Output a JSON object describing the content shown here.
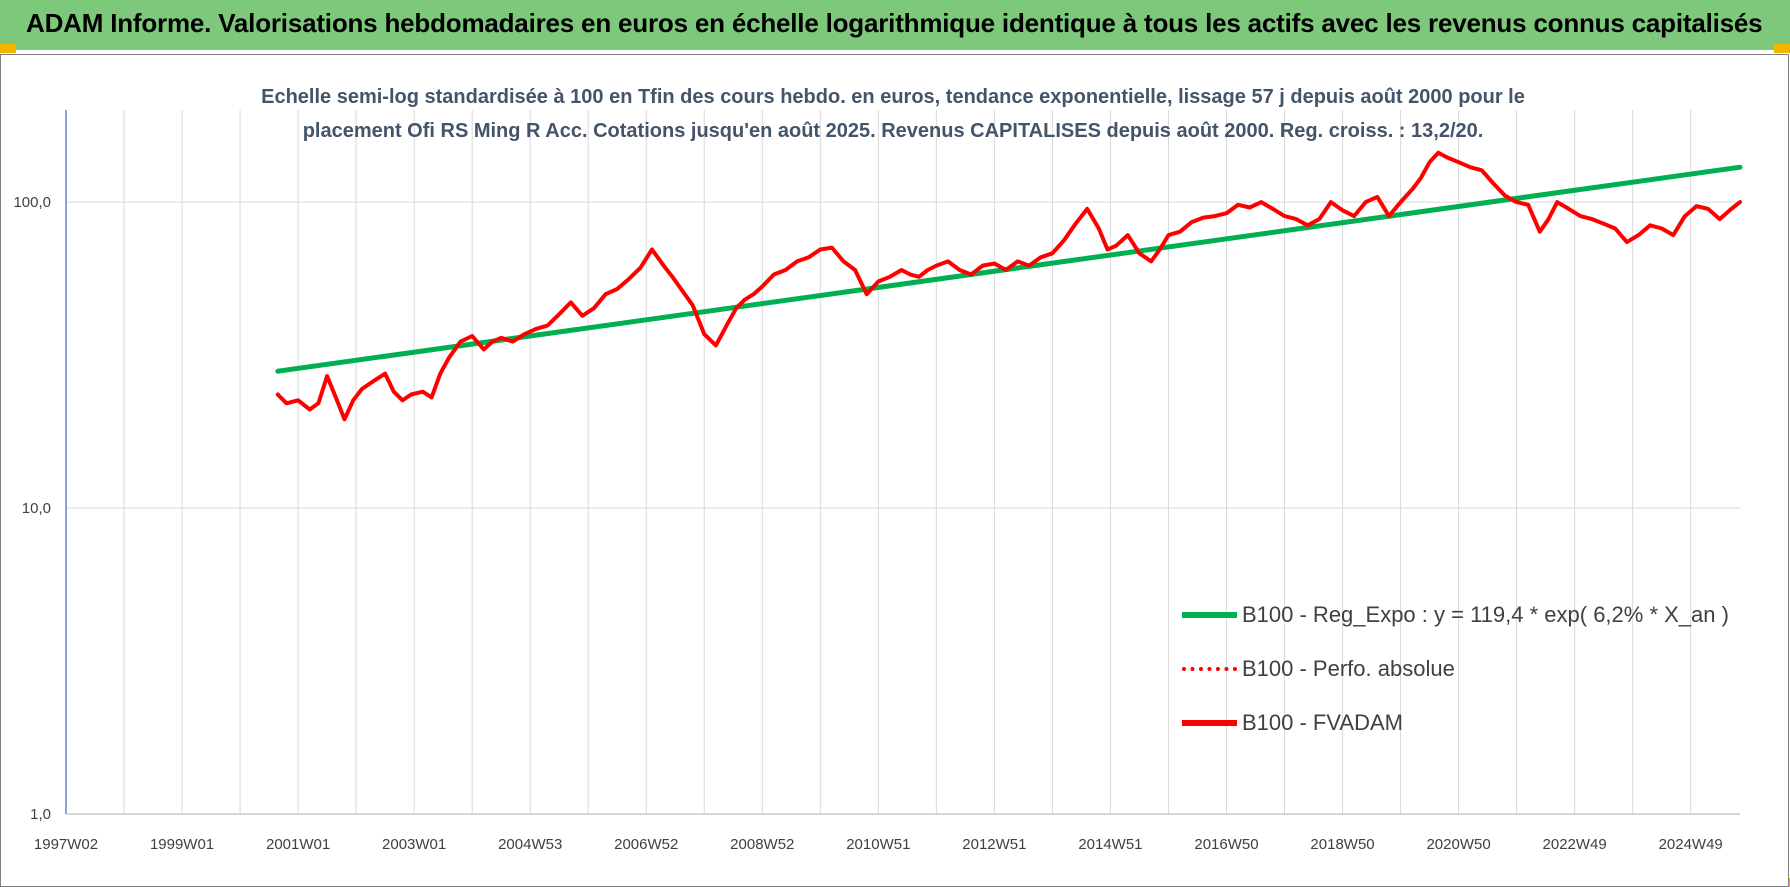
{
  "banner": {
    "title": "ADAM Informe. Valorisations hebdomadaires en euros en échelle logarithmique identique à tous les actifs avec les revenus connus capitalisés",
    "color": "#7dc87a"
  },
  "chart_data": {
    "type": "line",
    "title_lines": [
      "Echelle semi-log standardisée à 100 en Tfin des cours hebdo. en euros, tendance exponentielle, lissage 57 j depuis août 2000 pour le",
      "placement Ofi RS Ming R Acc. Cotations jusqu'en août 2025. Revenus CAPITALISES depuis août 2000. Reg. croiss. : 13,2/20."
    ],
    "y_scale": "log",
    "ylim": [
      1,
      200
    ],
    "y_ticks": [
      {
        "value": 1,
        "label": "1,0"
      },
      {
        "value": 10,
        "label": "10,0"
      },
      {
        "value": 100,
        "label": "100,0"
      }
    ],
    "xlim": [
      1997.0,
      2025.85
    ],
    "x_ticks": [
      {
        "value": 1997.0,
        "label": "1997W02"
      },
      {
        "value": 1999.0,
        "label": "1999W01"
      },
      {
        "value": 2001.0,
        "label": "2001W01"
      },
      {
        "value": 2003.0,
        "label": "2003W01"
      },
      {
        "value": 2005.0,
        "label": "2004W53"
      },
      {
        "value": 2007.0,
        "label": "2006W52"
      },
      {
        "value": 2009.0,
        "label": "2008W52"
      },
      {
        "value": 2011.0,
        "label": "2010W51"
      },
      {
        "value": 2013.0,
        "label": "2012W51"
      },
      {
        "value": 2015.0,
        "label": "2014W51"
      },
      {
        "value": 2017.0,
        "label": "2016W50"
      },
      {
        "value": 2019.0,
        "label": "2018W50"
      },
      {
        "value": 2021.0,
        "label": "2020W50"
      },
      {
        "value": 2023.0,
        "label": "2022W49"
      },
      {
        "value": 2025.0,
        "label": "2024W49"
      }
    ],
    "grid": "vertical and horizontal",
    "legend_position": "bottom-right",
    "series": [
      {
        "name": "B100 - Reg_Expo : y = 119,4 * exp( 6,2% *  X_an )",
        "color": "#00b050",
        "style": "solid",
        "x": [
          2000.65,
          2025.85
        ],
        "y": [
          28.0,
          130.0
        ]
      },
      {
        "name": "B100 - Perfo. absolue",
        "color": "#ff0000",
        "style": "dotted",
        "x": [],
        "y": []
      },
      {
        "name": "B100 - FVADAM",
        "color": "#ff0000",
        "style": "solid",
        "x": [
          2000.65,
          2000.8,
          2001.0,
          2001.2,
          2001.35,
          2001.5,
          2001.65,
          2001.8,
          2001.95,
          2002.1,
          2002.3,
          2002.5,
          2002.65,
          2002.8,
          2002.95,
          2003.15,
          2003.3,
          2003.45,
          2003.6,
          2003.8,
          2004.0,
          2004.2,
          2004.35,
          2004.5,
          2004.7,
          2004.9,
          2005.1,
          2005.3,
          2005.5,
          2005.7,
          2005.9,
          2006.1,
          2006.3,
          2006.5,
          2006.7,
          2006.9,
          2007.1,
          2007.3,
          2007.45,
          2007.6,
          2007.8,
          2008.0,
          2008.2,
          2008.4,
          2008.55,
          2008.7,
          2008.85,
          2009.0,
          2009.2,
          2009.4,
          2009.6,
          2009.8,
          2010.0,
          2010.2,
          2010.4,
          2010.6,
          2010.8,
          2011.0,
          2011.2,
          2011.4,
          2011.55,
          2011.7,
          2011.85,
          2012.0,
          2012.2,
          2012.4,
          2012.6,
          2012.8,
          2013.0,
          2013.2,
          2013.4,
          2013.6,
          2013.8,
          2014.0,
          2014.2,
          2014.4,
          2014.6,
          2014.8,
          2014.95,
          2015.1,
          2015.3,
          2015.5,
          2015.7,
          2015.85,
          2016.0,
          2016.2,
          2016.4,
          2016.6,
          2016.8,
          2017.0,
          2017.2,
          2017.4,
          2017.6,
          2017.8,
          2018.0,
          2018.2,
          2018.4,
          2018.6,
          2018.8,
          2019.0,
          2019.2,
          2019.4,
          2019.6,
          2019.8,
          2020.0,
          2020.2,
          2020.35,
          2020.5,
          2020.65,
          2020.8,
          2021.0,
          2021.2,
          2021.4,
          2021.6,
          2021.8,
          2022.0,
          2022.2,
          2022.4,
          2022.55,
          2022.7,
          2022.9,
          2023.1,
          2023.3,
          2023.5,
          2023.7,
          2023.9,
          2024.1,
          2024.3,
          2024.5,
          2024.7,
          2024.9,
          2025.1,
          2025.3,
          2025.5,
          2025.7,
          2025.85
        ],
        "y": [
          23.5,
          22.0,
          22.5,
          21.0,
          22.0,
          27.0,
          23.0,
          19.5,
          22.5,
          24.5,
          26.0,
          27.5,
          24.0,
          22.5,
          23.5,
          24.0,
          23.0,
          27.5,
          31.0,
          35.0,
          36.5,
          33.0,
          35.0,
          36.0,
          35.0,
          37.0,
          38.5,
          39.5,
          43.0,
          47.0,
          42.5,
          45.0,
          50.0,
          52.0,
          56.0,
          61.0,
          70.0,
          62.0,
          57.0,
          52.0,
          46.0,
          37.0,
          34.0,
          40.0,
          45.0,
          48.0,
          50.0,
          53.0,
          58.0,
          60.0,
          64.0,
          66.0,
          70.0,
          71.0,
          64.0,
          60.0,
          50.0,
          55.0,
          57.0,
          60.0,
          58.0,
          57.0,
          60.0,
          62.0,
          64.0,
          60.0,
          58.0,
          62.0,
          63.0,
          60.0,
          64.0,
          62.0,
          66.0,
          68.0,
          75.0,
          85.0,
          95.0,
          82.0,
          70.0,
          72.0,
          78.0,
          68.0,
          64.0,
          70.0,
          78.0,
          80.0,
          86.0,
          89.0,
          90.0,
          92.0,
          98.0,
          96.0,
          100.0,
          95.0,
          90.0,
          88.0,
          84.0,
          88.0,
          100.0,
          94.0,
          90.0,
          100.0,
          104.0,
          90.0,
          100.0,
          110.0,
          120.0,
          135.0,
          145.0,
          140.0,
          135.0,
          130.0,
          127.0,
          115.0,
          105.0,
          100.0,
          98.0,
          80.0,
          88.0,
          100.0,
          95.0,
          90.0,
          88.0,
          85.0,
          82.0,
          74.0,
          78.0,
          84.0,
          82.0,
          78.0,
          90.0,
          97.0,
          95.0,
          88.0,
          95.0,
          100.0
        ]
      }
    ]
  }
}
